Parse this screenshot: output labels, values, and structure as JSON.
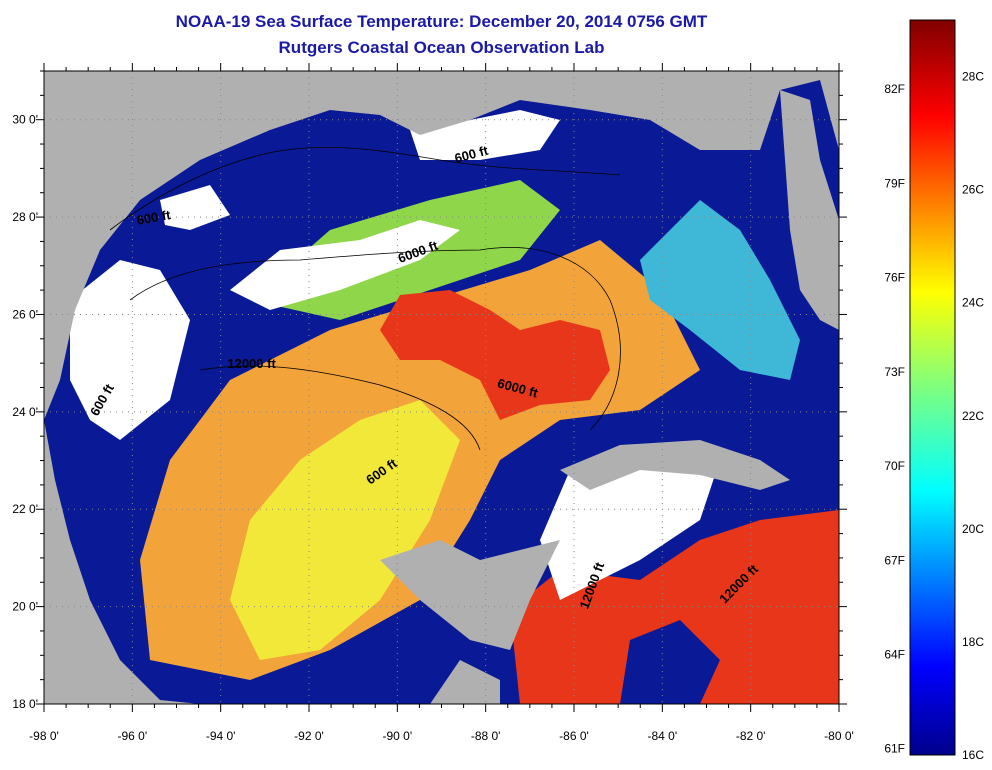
{
  "title": "NOAA-19 Sea Surface Temperature:  December 20, 2014 0756 GMT",
  "subtitle": "Rutgers Coastal Ocean Observation Lab",
  "map": {
    "lon_range": [
      -98,
      -80
    ],
    "lat_range": [
      18,
      31
    ],
    "x_ticks": [
      "-98 0'",
      "-96 0'",
      "-94 0'",
      "-92 0'",
      "-90 0'",
      "-88 0'",
      "-86 0'",
      "-84 0'",
      "-82 0'",
      "-80 0'"
    ],
    "y_ticks": [
      "18 0'",
      "20 0'",
      "22 0'",
      "24 0'",
      "26 0'",
      "28 0'",
      "30 0'"
    ],
    "grid": "dotted",
    "colors": {
      "land": "#b0b0b0",
      "cloud": "#ffffff",
      "cold_water": "#00008c"
    },
    "contour_labels": [
      {
        "text": "600 ft",
        "lon": -95.5,
        "lat": 27.9,
        "rot": -10
      },
      {
        "text": "600 ft",
        "lon": -90.3,
        "lat": 22.7,
        "rot": -35
      },
      {
        "text": "600 ft",
        "lon": -96.6,
        "lat": 24.2,
        "rot": -60
      },
      {
        "text": "600 ft",
        "lon": -88.3,
        "lat": 29.2,
        "rot": -15
      },
      {
        "text": "6000 ft",
        "lon": -89.5,
        "lat": 27.2,
        "rot": -20
      },
      {
        "text": "6000 ft",
        "lon": -87.3,
        "lat": 24.4,
        "rot": 15
      },
      {
        "text": "12000 ft",
        "lon": -93.3,
        "lat": 24.9,
        "rot": 0
      },
      {
        "text": "12000 ft",
        "lon": -85.5,
        "lat": 20.4,
        "rot": -70
      },
      {
        "text": "12000 ft",
        "lon": -82.2,
        "lat": 20.4,
        "rot": -45
      }
    ]
  },
  "colorbar": {
    "fahrenheit": [
      "82F",
      "79F",
      "76F",
      "73F",
      "70F",
      "67F",
      "64F",
      "61F"
    ],
    "celsius": [
      "28C",
      "26C",
      "24C",
      "22C",
      "20C",
      "18C",
      "16C"
    ],
    "range_c": [
      16,
      29
    ]
  }
}
